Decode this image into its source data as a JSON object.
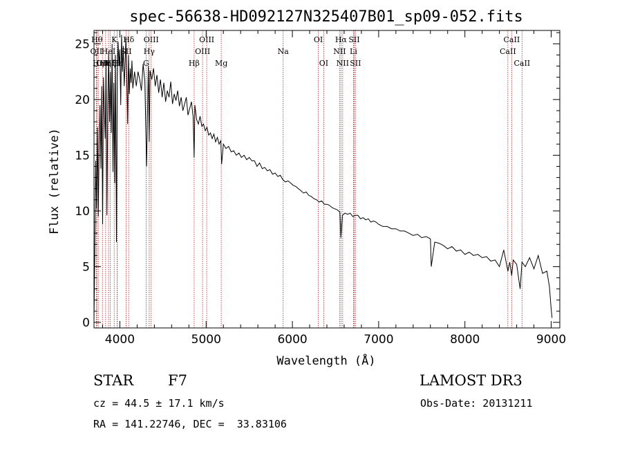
{
  "chart_data": {
    "type": "line",
    "title": "spec-56638-HD092127N325407B01_sp09-052.fits",
    "xlabel": "Wavelength (Å)",
    "ylabel": "Flux (relative)",
    "xlim": [
      3700,
      9100
    ],
    "ylim": [
      -0.5,
      26.2
    ],
    "xticks": [
      {
        "value": 4000,
        "label": "4000"
      },
      {
        "value": 5000,
        "label": "5000"
      },
      {
        "value": 6000,
        "label": "6000"
      },
      {
        "value": 7000,
        "label": "7000"
      },
      {
        "value": 8000,
        "label": "8000"
      },
      {
        "value": 9000,
        "label": "9000"
      }
    ],
    "yticks": [
      {
        "value": 0,
        "label": "0"
      },
      {
        "value": 5,
        "label": "5"
      },
      {
        "value": 10,
        "label": "10"
      },
      {
        "value": 15,
        "label": "15"
      },
      {
        "value": 20,
        "label": "20"
      },
      {
        "value": 25,
        "label": "25"
      }
    ],
    "grid": false,
    "series": [
      {
        "values_description_free": true,
        "x": [
          3700,
          3710,
          3720,
          3730,
          3740,
          3750,
          3760,
          3770,
          3780,
          3790,
          3800,
          3810,
          3820,
          3830,
          3840,
          3850,
          3860,
          3870,
          3880,
          3890,
          3900,
          3910,
          3920,
          3930,
          3940,
          3950,
          3960,
          3970,
          3980,
          3990,
          4000,
          4010,
          4020,
          4030,
          4040,
          4050,
          4060,
          4070,
          4080,
          4090,
          4100,
          4110,
          4120,
          4130,
          4140,
          4150,
          4170,
          4190,
          4210,
          4230,
          4250,
          4270,
          4290,
          4310,
          4330,
          4340,
          4350,
          4370,
          4390,
          4410,
          4430,
          4450,
          4470,
          4490,
          4510,
          4530,
          4550,
          4570,
          4590,
          4610,
          4630,
          4650,
          4670,
          4690,
          4710,
          4730,
          4750,
          4770,
          4790,
          4810,
          4830,
          4850,
          4861,
          4870,
          4890,
          4910,
          4930,
          4950,
          4970,
          4990,
          5010,
          5030,
          5050,
          5070,
          5090,
          5110,
          5130,
          5150,
          5170,
          5180,
          5200,
          5230,
          5260,
          5290,
          5320,
          5350,
          5380,
          5410,
          5440,
          5470,
          5500,
          5530,
          5560,
          5590,
          5620,
          5650,
          5680,
          5710,
          5740,
          5770,
          5800,
          5830,
          5860,
          5890,
          5920,
          5950,
          5980,
          6010,
          6040,
          6070,
          6100,
          6130,
          6160,
          6190,
          6220,
          6250,
          6280,
          6310,
          6340,
          6370,
          6400,
          6430,
          6460,
          6490,
          6520,
          6550,
          6563,
          6580,
          6610,
          6640,
          6670,
          6700,
          6730,
          6760,
          6790,
          6820,
          6850,
          6880,
          6910,
          6940,
          6970,
          7000,
          7050,
          7100,
          7150,
          7200,
          7250,
          7300,
          7350,
          7400,
          7450,
          7500,
          7550,
          7600,
          7610,
          7650,
          7700,
          7750,
          7800,
          7850,
          7900,
          7950,
          8000,
          8050,
          8100,
          8150,
          8200,
          8250,
          8300,
          8350,
          8400,
          8450,
          8498,
          8520,
          8542,
          8560,
          8600,
          8640,
          8662,
          8700,
          8750,
          8800,
          8850,
          8900,
          8950,
          8980,
          9000,
          9010
        ],
        "y": [
          0.2,
          6.5,
          14.5,
          10.2,
          17.5,
          9.5,
          15.8,
          19.5,
          13.8,
          21.2,
          8.8,
          22.0,
          19.0,
          16.5,
          23.5,
          9.6,
          19.5,
          24.2,
          18.0,
          22.5,
          17.0,
          25.0,
          13.5,
          21.5,
          12.5,
          24.0,
          7.2,
          22.0,
          25.2,
          23.0,
          24.5,
          19.5,
          25.8,
          22.5,
          24.8,
          21.2,
          23.0,
          25.6,
          22.2,
          17.8,
          24.0,
          20.5,
          22.8,
          21.5,
          23.5,
          21.0,
          22.5,
          21.2,
          22.5,
          21.8,
          20.8,
          23.2,
          21.6,
          14.0,
          23.0,
          16.2,
          22.6,
          21.8,
          22.8,
          21.2,
          22.2,
          20.6,
          21.8,
          20.2,
          21.5,
          19.8,
          20.8,
          20.2,
          21.6,
          19.6,
          20.5,
          19.9,
          20.8,
          19.4,
          20.2,
          19.0,
          19.6,
          20.2,
          18.6,
          19.2,
          19.8,
          18.4,
          14.8,
          19.5,
          18.2,
          17.8,
          18.5,
          17.6,
          17.8,
          17.2,
          17.5,
          16.8,
          17.0,
          16.5,
          16.9,
          16.2,
          16.6,
          16.0,
          16.3,
          14.2,
          16.0,
          15.6,
          15.8,
          15.3,
          15.4,
          15.0,
          15.2,
          14.8,
          15.0,
          14.6,
          14.8,
          14.5,
          14.5,
          14.0,
          14.3,
          13.8,
          13.9,
          13.6,
          13.7,
          13.3,
          13.4,
          13.1,
          13.2,
          12.8,
          12.6,
          12.7,
          12.5,
          12.3,
          12.2,
          12.0,
          11.8,
          11.6,
          11.7,
          11.4,
          11.3,
          11.1,
          11.0,
          10.8,
          10.9,
          10.6,
          10.6,
          10.5,
          10.3,
          10.2,
          10.1,
          9.9,
          7.6,
          9.6,
          9.8,
          9.7,
          9.8,
          9.5,
          9.6,
          9.6,
          9.3,
          9.4,
          9.2,
          9.3,
          9.0,
          9.1,
          9.0,
          8.8,
          8.6,
          8.6,
          8.4,
          8.4,
          8.2,
          8.2,
          8.0,
          7.8,
          7.9,
          7.6,
          7.7,
          7.5,
          5.0,
          7.2,
          7.1,
          6.9,
          6.6,
          6.8,
          6.4,
          6.5,
          6.1,
          6.3,
          6.0,
          6.1,
          5.8,
          5.9,
          5.5,
          5.6,
          5.0,
          6.5,
          4.6,
          5.4,
          4.2,
          5.6,
          5.2,
          3.0,
          5.4,
          5.0,
          5.8,
          4.8,
          6.0,
          4.4,
          4.6,
          3.2,
          1.2,
          0.4
        ]
      }
    ],
    "line_markers": [
      {
        "wavelength": 3727,
        "label": "OII",
        "row": 2
      },
      {
        "wavelength": 3734,
        "label": "Hθ",
        "row": 1
      },
      {
        "wavelength": 3750,
        "label": "Hη",
        "row": 3
      },
      {
        "wavelength": 3798,
        "label": "OII",
        "row": 3
      },
      {
        "wavelength": 3835,
        "label": "Hη",
        "row": 3
      },
      {
        "wavelength": 3868,
        "label": "HeI",
        "row": 2
      },
      {
        "wavelength": 3889,
        "label": "Hζ",
        "row": 3
      },
      {
        "wavelength": 3934,
        "label": "K",
        "row": 1
      },
      {
        "wavelength": 3968,
        "label": "H",
        "row": 3
      },
      {
        "wavelength": 3970,
        "label": "Hε",
        "row": 3
      },
      {
        "wavelength": 4072,
        "label": "SII",
        "row": 2
      },
      {
        "wavelength": 4102,
        "label": "Hδ",
        "row": 1
      },
      {
        "wavelength": 4304,
        "label": "G",
        "row": 3
      },
      {
        "wavelength": 4340,
        "label": "Hγ",
        "row": 2
      },
      {
        "wavelength": 4363,
        "label": "OIII",
        "row": 1
      },
      {
        "wavelength": 4861,
        "label": "Hβ",
        "row": 3
      },
      {
        "wavelength": 4959,
        "label": "OIII",
        "row": 2
      },
      {
        "wavelength": 5007,
        "label": "OIII",
        "row": 1
      },
      {
        "wavelength": 5175,
        "label": "Mg",
        "row": 3
      },
      {
        "wavelength": 5893,
        "label": "Na",
        "row": 2
      },
      {
        "wavelength": 6300,
        "label": "OI",
        "row": 1
      },
      {
        "wavelength": 6363,
        "label": "OI",
        "row": 3
      },
      {
        "wavelength": 6548,
        "label": "NII",
        "row": 2
      },
      {
        "wavelength": 6563,
        "label": "Hα",
        "row": 1
      },
      {
        "wavelength": 6583,
        "label": "NII",
        "row": 3
      },
      {
        "wavelength": 6708,
        "label": "Li",
        "row": 2
      },
      {
        "wavelength": 6716,
        "label": "SII",
        "row": 1
      },
      {
        "wavelength": 6731,
        "label": "SII",
        "row": 3
      },
      {
        "wavelength": 8498,
        "label": "CaII",
        "row": 2
      },
      {
        "wavelength": 8542,
        "label": "CaII",
        "row": 1
      },
      {
        "wavelength": 8662,
        "label": "CaII",
        "row": 3
      }
    ]
  },
  "info": {
    "object_type": "STAR",
    "subclass": "F7",
    "survey": "LAMOST DR3",
    "redshift": "cz = 44.5 ± 17.1 km/s",
    "obs_date": "Obs-Date: 20131211",
    "coords": "RA = 141.22746, DEC =  33.83106"
  },
  "colors": {
    "line": "#000000",
    "marker": "#b22222",
    "axes": "#000000"
  }
}
